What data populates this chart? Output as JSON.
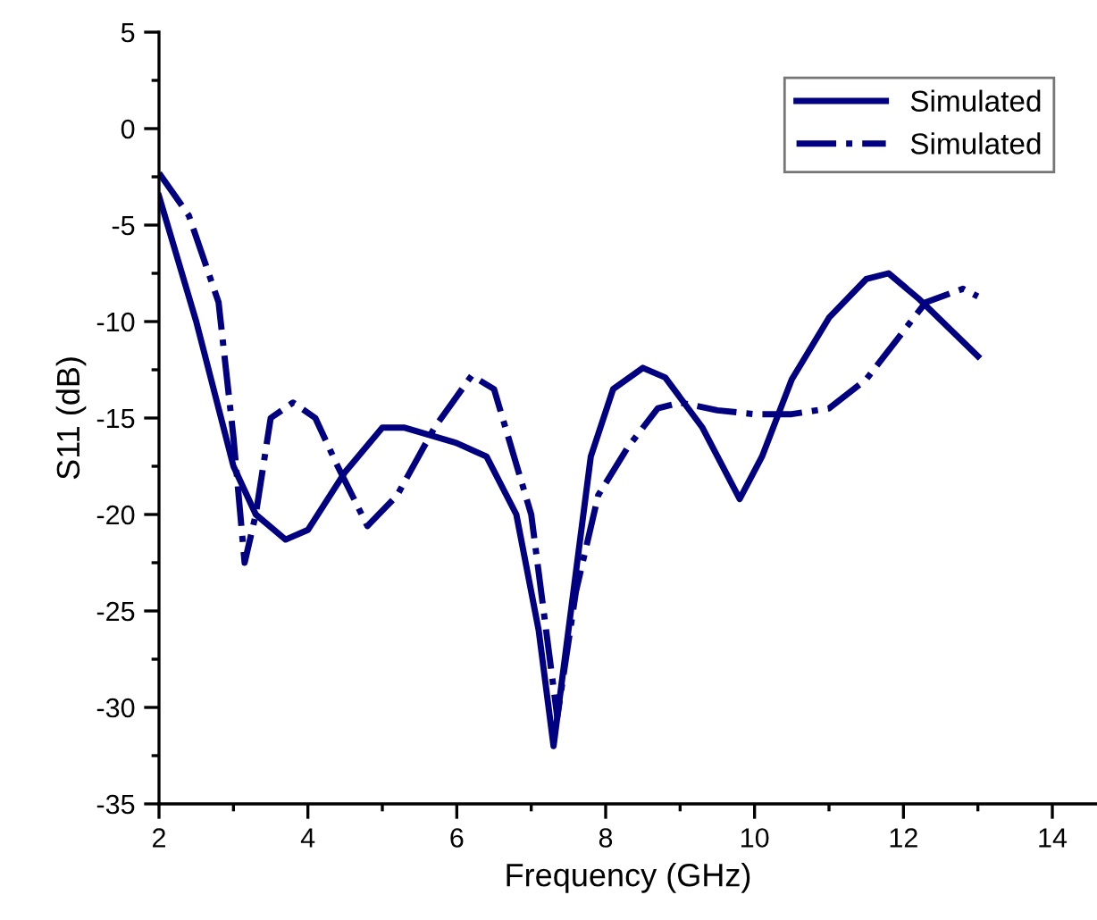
{
  "chart_data": {
    "type": "line",
    "xlabel": "Frequency (GHz)",
    "ylabel": "S11 (dB)",
    "xlim": [
      2,
      14.6
    ],
    "xticks": [
      2,
      4,
      6,
      8,
      10,
      12,
      14
    ],
    "ylim": [
      -35,
      5
    ],
    "yticks": [
      -35,
      -30,
      -25,
      -20,
      -15,
      -10,
      -5,
      0,
      5
    ],
    "grid": false,
    "legend": "top right",
    "marker": "none",
    "series": [
      {
        "name": "Simulated",
        "color": "#000080",
        "line_style": "solid",
        "x": [
          2,
          2.5,
          3,
          3.3,
          3.7,
          4,
          4.5,
          5,
          5.3,
          6,
          6.4,
          6.8,
          7.1,
          7.3,
          7.5,
          7.8,
          8.1,
          8.5,
          8.8,
          9.3,
          9.8,
          10.1,
          10.5,
          11,
          11.5,
          11.8,
          12.2,
          13
        ],
        "values": [
          -3.5,
          -10,
          -17.5,
          -20,
          -21.3,
          -20.8,
          -17.8,
          -15.5,
          -15.5,
          -16.3,
          -17,
          -20,
          -26,
          -32,
          -26,
          -17,
          -13.5,
          -12.4,
          -12.9,
          -15.5,
          -19.2,
          -17,
          -13,
          -9.8,
          -7.8,
          -7.5,
          -8.8,
          -11.8
        ]
      },
      {
        "name": "Simulated",
        "color": "#000080",
        "line_style": "dashdot",
        "x": [
          2,
          2.4,
          2.8,
          3,
          3.15,
          3.3,
          3.5,
          3.8,
          4.1,
          4.4,
          4.8,
          5.2,
          5.7,
          6.2,
          6.5,
          7,
          7.35,
          7.6,
          7.9,
          8.3,
          8.7,
          9,
          9.5,
          10,
          10.5,
          11,
          11.5,
          12,
          12.3,
          12.8,
          13
        ],
        "values": [
          -2.3,
          -4.5,
          -9,
          -16,
          -22.5,
          -20,
          -15,
          -14.2,
          -15,
          -17.5,
          -20.6,
          -19,
          -15.5,
          -12.8,
          -13.5,
          -20,
          -30.5,
          -24,
          -19,
          -16.5,
          -14.5,
          -14.2,
          -14.6,
          -14.8,
          -14.8,
          -14.5,
          -13,
          -10.5,
          -9,
          -8.3,
          -8.7
        ]
      }
    ]
  }
}
